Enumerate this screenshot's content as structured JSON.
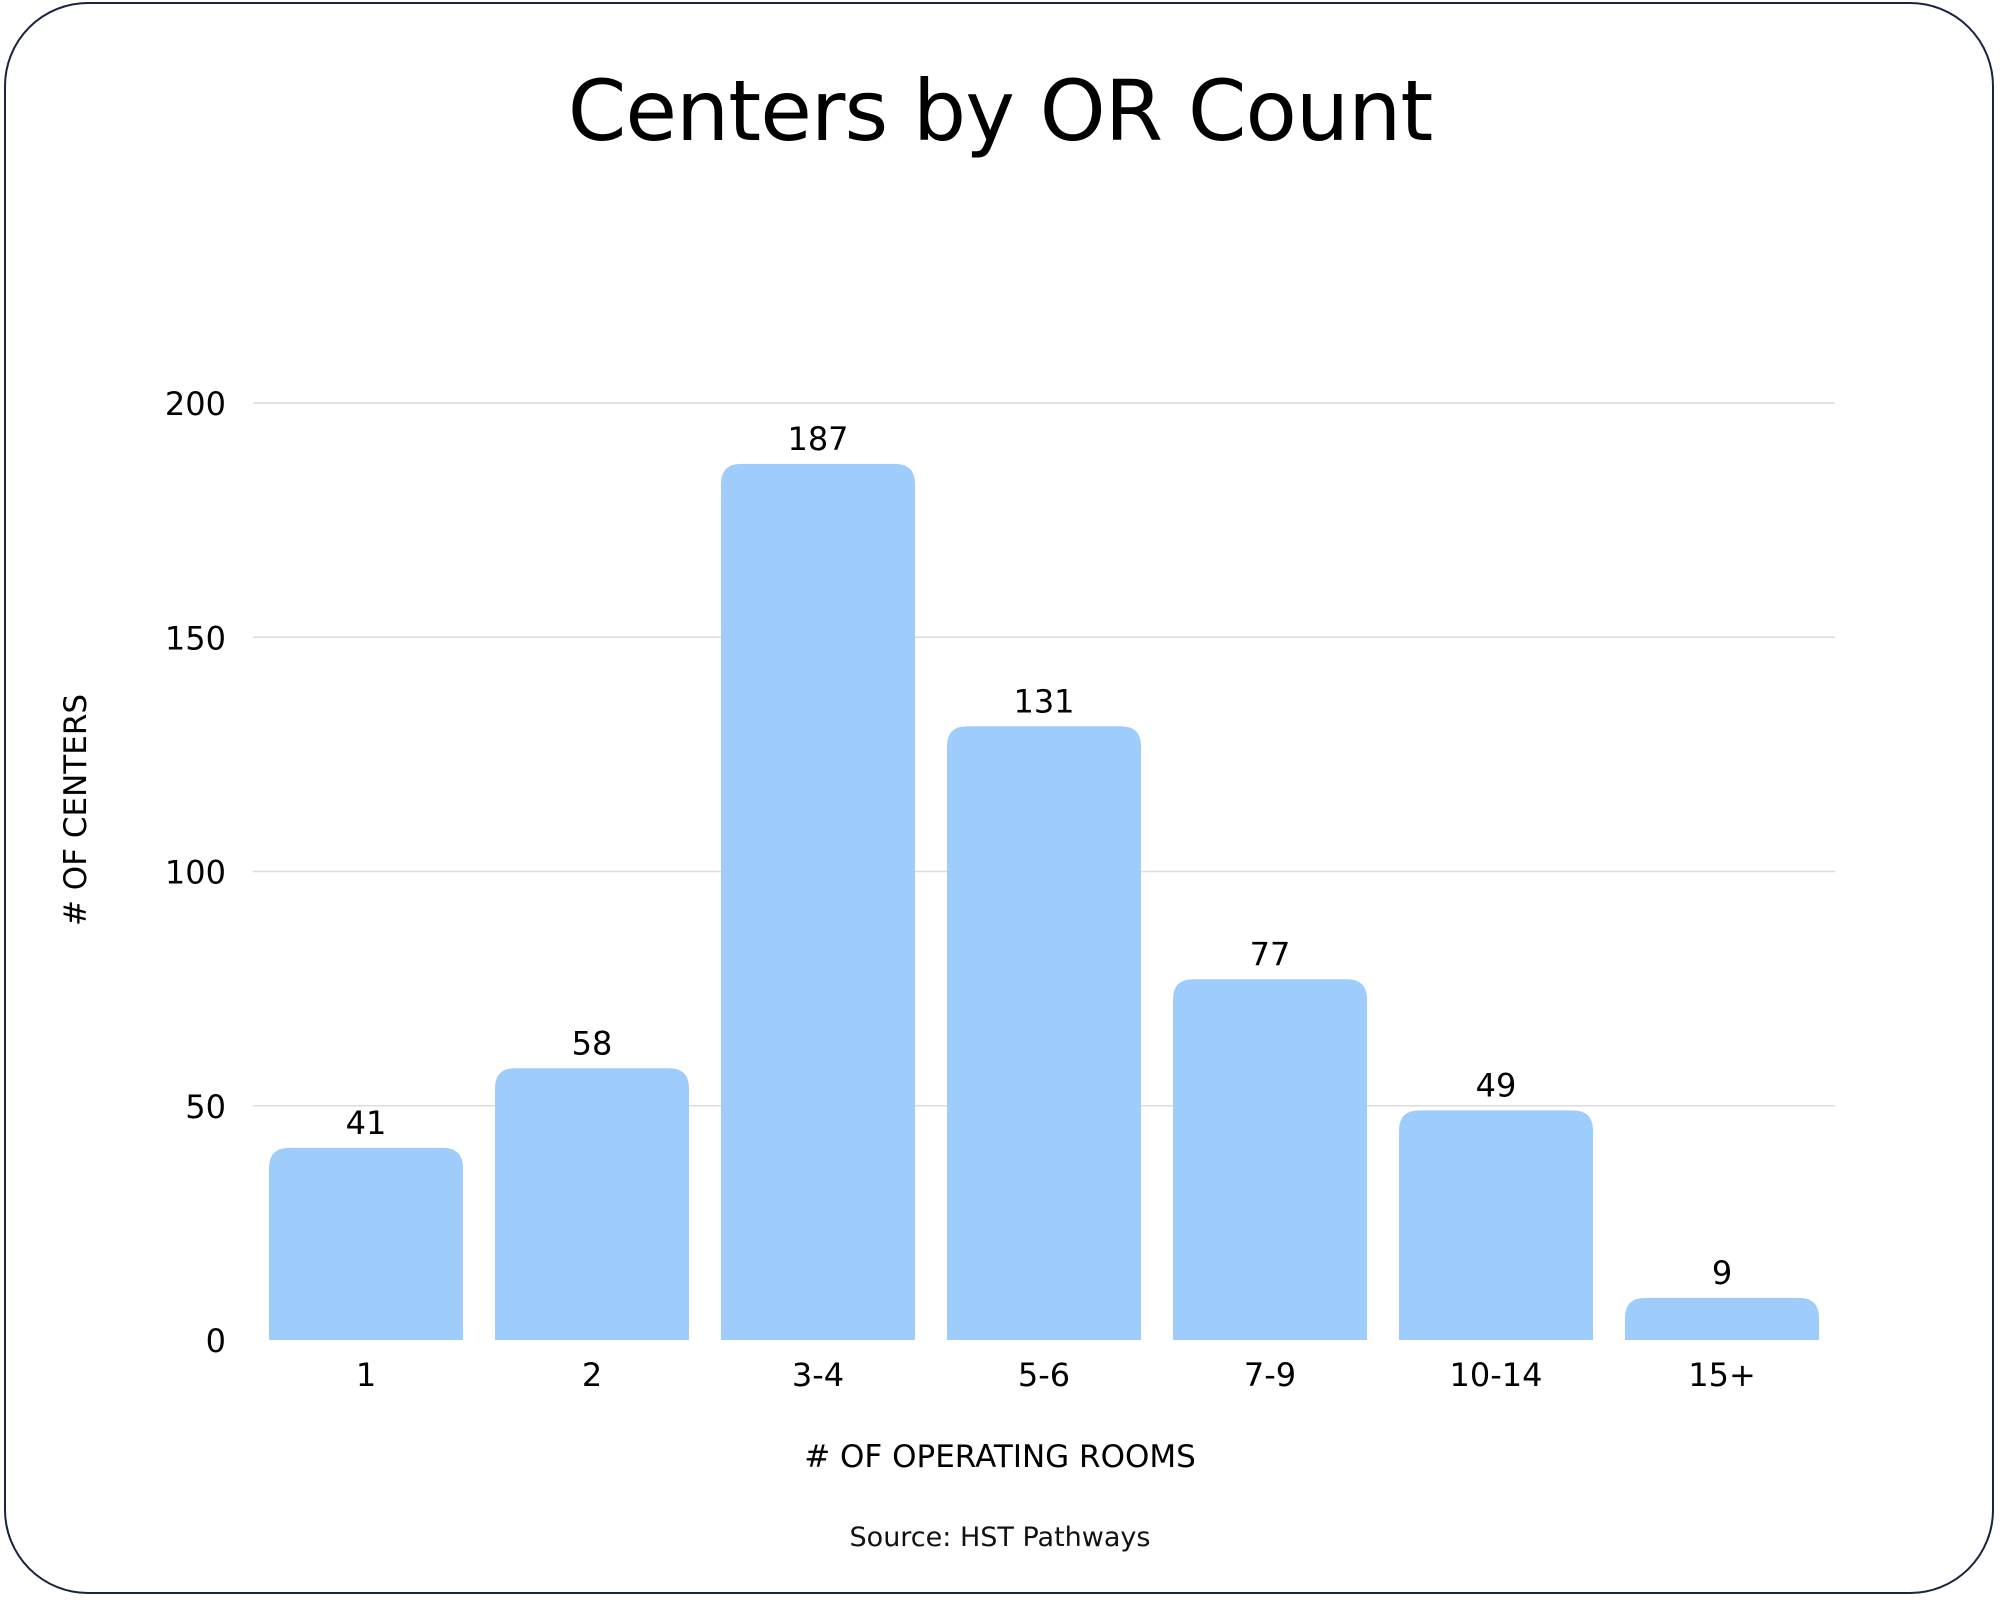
{
  "chart_data": {
    "type": "bar",
    "title": "Centers by OR Count",
    "xlabel": "# OF OPERATING ROOMS",
    "ylabel": "# OF CENTERS",
    "categories": [
      "1",
      "2",
      "3-4",
      "5-6",
      "7-9",
      "10-14",
      "15+"
    ],
    "values": [
      41,
      58,
      187,
      131,
      77,
      49,
      9
    ],
    "value_labels": [
      "41",
      "58",
      "187",
      "131",
      "77",
      "49",
      "9"
    ],
    "ylim": [
      0,
      200
    ],
    "yticks": [
      0,
      50,
      100,
      150,
      200
    ],
    "ytick_labels": [
      "0",
      "50",
      "100",
      "150",
      "200"
    ],
    "grid": true,
    "legend": "none",
    "bar_color": "#9ecdfc",
    "grid_color": "#dcdcdc"
  },
  "footer": {
    "source": "Source: HST Pathways"
  },
  "colors": {
    "border": "#1a2440",
    "background": "#ffffff"
  }
}
